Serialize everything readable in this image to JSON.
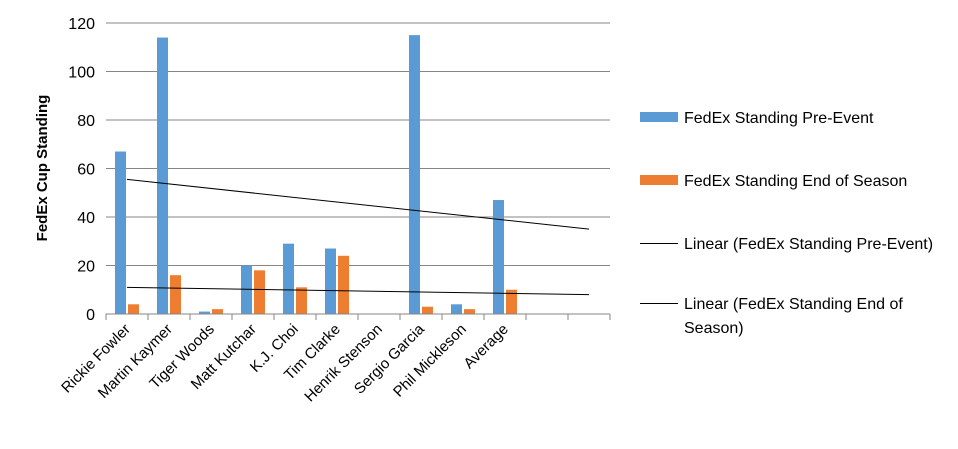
{
  "chart_data": {
    "type": "bar",
    "title": "",
    "xlabel": "",
    "ylabel": "FedEx Cup Standing",
    "ylim": [
      0,
      120
    ],
    "yticks": [
      "0",
      "20",
      "40",
      "60",
      "80",
      "100",
      "120"
    ],
    "grid": true,
    "legend_position": "right",
    "categories": [
      "Rickie Fowler",
      "Martin Kaymer",
      "Tiger Woods",
      "Matt Kutchar",
      "K.J. Choi",
      "Tim Clarke",
      "Henrik Stenson",
      "Sergio Garcia",
      "Phil Mickleson",
      "Average",
      "",
      ""
    ],
    "series": [
      {
        "name": "FedEx Standing Pre-Event",
        "color": "#5B9BD5",
        "values": [
          67,
          114,
          1,
          20,
          29,
          27,
          null,
          115,
          4,
          47,
          null,
          null
        ]
      },
      {
        "name": "FedEx Standing End of Season",
        "color": "#ED7D31",
        "values": [
          4,
          16,
          2,
          18,
          11,
          24,
          null,
          3,
          2,
          10,
          null,
          null
        ]
      }
    ],
    "trendlines": [
      {
        "name": "Linear (FedEx Standing Pre-Event)",
        "color": "#000000",
        "start": 55.5,
        "end": 35
      },
      {
        "name": "Linear (FedEx Standing End of Season)",
        "color": "#000000",
        "start": 11,
        "end": 8
      }
    ]
  }
}
